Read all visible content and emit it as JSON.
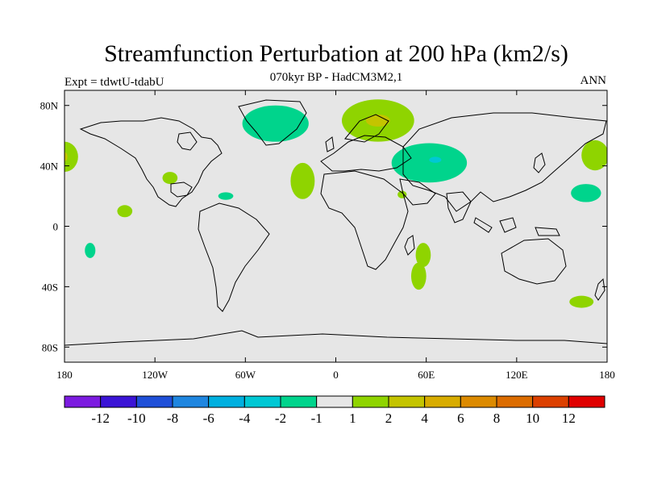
{
  "title": "Streamfunction Perturbation at 200 hPa (km2/s)",
  "left_label": "Expt = tdwtU-tdabU",
  "center_label": "070kyr BP - HadCM3M2,1",
  "right_label": "ANN",
  "map": {
    "projection": "cylindrical-equidistant",
    "lon_range": [
      -180,
      180
    ],
    "lat_range": [
      -90,
      90
    ],
    "background_color": "#e6e6e6",
    "lon_ticks": [
      {
        "lon": -180,
        "label": "180"
      },
      {
        "lon": -120,
        "label": "120W"
      },
      {
        "lon": -60,
        "label": "60W"
      },
      {
        "lon": 0,
        "label": "0"
      },
      {
        "lon": 60,
        "label": "60E"
      },
      {
        "lon": 120,
        "label": "120E"
      },
      {
        "lon": 180,
        "label": "180"
      }
    ],
    "lat_ticks": [
      {
        "lat": 80,
        "label": "80N"
      },
      {
        "lat": 40,
        "label": "40N"
      },
      {
        "lat": 0,
        "label": "0"
      },
      {
        "lat": -40,
        "label": "40S"
      },
      {
        "lat": -80,
        "label": "80S"
      }
    ],
    "anomaly_regions": [
      {
        "name": "north-atlantic-arctic-negative",
        "level": "-2 to -1",
        "color": "#00d48c",
        "lon": -40,
        "lat": 68,
        "rlon": 22,
        "rlat": 12
      },
      {
        "name": "scandinavia-positive",
        "level": "1 to 2",
        "color": "#8fd400",
        "lon": 28,
        "lat": 70,
        "rlon": 24,
        "rlat": 14
      },
      {
        "name": "scandinavia-core-positive",
        "level": "2 to 4",
        "color": "#c4c400",
        "lon": 28,
        "lat": 70,
        "rlon": 8,
        "rlat": 4
      },
      {
        "name": "central-asia-negative",
        "level": "-2 to -1",
        "color": "#00d48c",
        "lon": 62,
        "lat": 42,
        "rlon": 25,
        "rlat": 13
      },
      {
        "name": "central-asia-core-negative",
        "level": "-4 to -2",
        "color": "#00c8d4",
        "lon": 66,
        "lat": 44,
        "rlon": 4,
        "rlat": 2
      },
      {
        "name": "atlantic-positive",
        "level": "1 to 2",
        "color": "#8fd400",
        "lon": -22,
        "lat": 30,
        "rlon": 8,
        "rlat": 12
      },
      {
        "name": "dateline-west-positive",
        "level": "1 to 2",
        "color": "#8fd400",
        "lon": -180,
        "lat": 46,
        "rlon": 9,
        "rlat": 10
      },
      {
        "name": "dateline-west-core",
        "level": "2 to 4",
        "color": "#c4c400",
        "lon": -180,
        "lat": 46,
        "rlon": 2,
        "rlat": 3
      },
      {
        "name": "north-pacific-positive",
        "level": "1 to 2",
        "color": "#8fd400",
        "lon": 172,
        "lat": 47,
        "rlon": 9,
        "rlat": 10
      },
      {
        "name": "gulf-mexico-positive",
        "level": "1 to 2",
        "color": "#8fd400",
        "lon": -110,
        "lat": 32,
        "rlon": 5,
        "rlat": 4
      },
      {
        "name": "caribbean-negative",
        "level": "-2 to -1",
        "color": "#00d48c",
        "lon": -73,
        "lat": 20,
        "rlon": 5,
        "rlat": 2.5
      },
      {
        "name": "tropical-pacific-positive",
        "level": "1 to 2",
        "color": "#8fd400",
        "lon": -140,
        "lat": 10,
        "rlon": 5,
        "rlat": 4
      },
      {
        "name": "south-pacific-negative",
        "level": "-2 to -1",
        "color": "#00d48c",
        "lon": -163,
        "lat": -16,
        "rlon": 3.5,
        "rlat": 5
      },
      {
        "name": "arabia-positive",
        "level": "1 to 2",
        "color": "#8fd400",
        "lon": 44,
        "lat": 21,
        "rlon": 3,
        "rlat": 2.5
      },
      {
        "name": "west-pacific-negative",
        "level": "-2 to -1",
        "color": "#00d48c",
        "lon": 166,
        "lat": 22,
        "rlon": 10,
        "rlat": 6
      },
      {
        "name": "indian-ocean-north-positive",
        "level": "1 to 2",
        "color": "#8fd400",
        "lon": 58,
        "lat": -19,
        "rlon": 5,
        "rlat": 8
      },
      {
        "name": "indian-ocean-south-positive",
        "level": "1 to 2",
        "color": "#8fd400",
        "lon": 55,
        "lat": -33,
        "rlon": 5,
        "rlat": 9
      },
      {
        "name": "tasman-positive",
        "level": "1 to 2",
        "color": "#8fd400",
        "lon": 163,
        "lat": -50,
        "rlon": 8,
        "rlat": 4
      }
    ]
  },
  "colorbar": {
    "colors": [
      "#7c1be0",
      "#3b14d6",
      "#1f4fd8",
      "#1f86e0",
      "#00b0e0",
      "#00c8d4",
      "#00d48c",
      "#e6e6e6",
      "#8fd400",
      "#c4c400",
      "#d8ac00",
      "#dc8a00",
      "#dc6c00",
      "#dc4000",
      "#e00000"
    ],
    "labels": [
      "-12",
      "-10",
      "-8",
      "-6",
      "-4",
      "-2",
      "-1",
      "1",
      "2",
      "4",
      "6",
      "8",
      "10",
      "12"
    ]
  }
}
